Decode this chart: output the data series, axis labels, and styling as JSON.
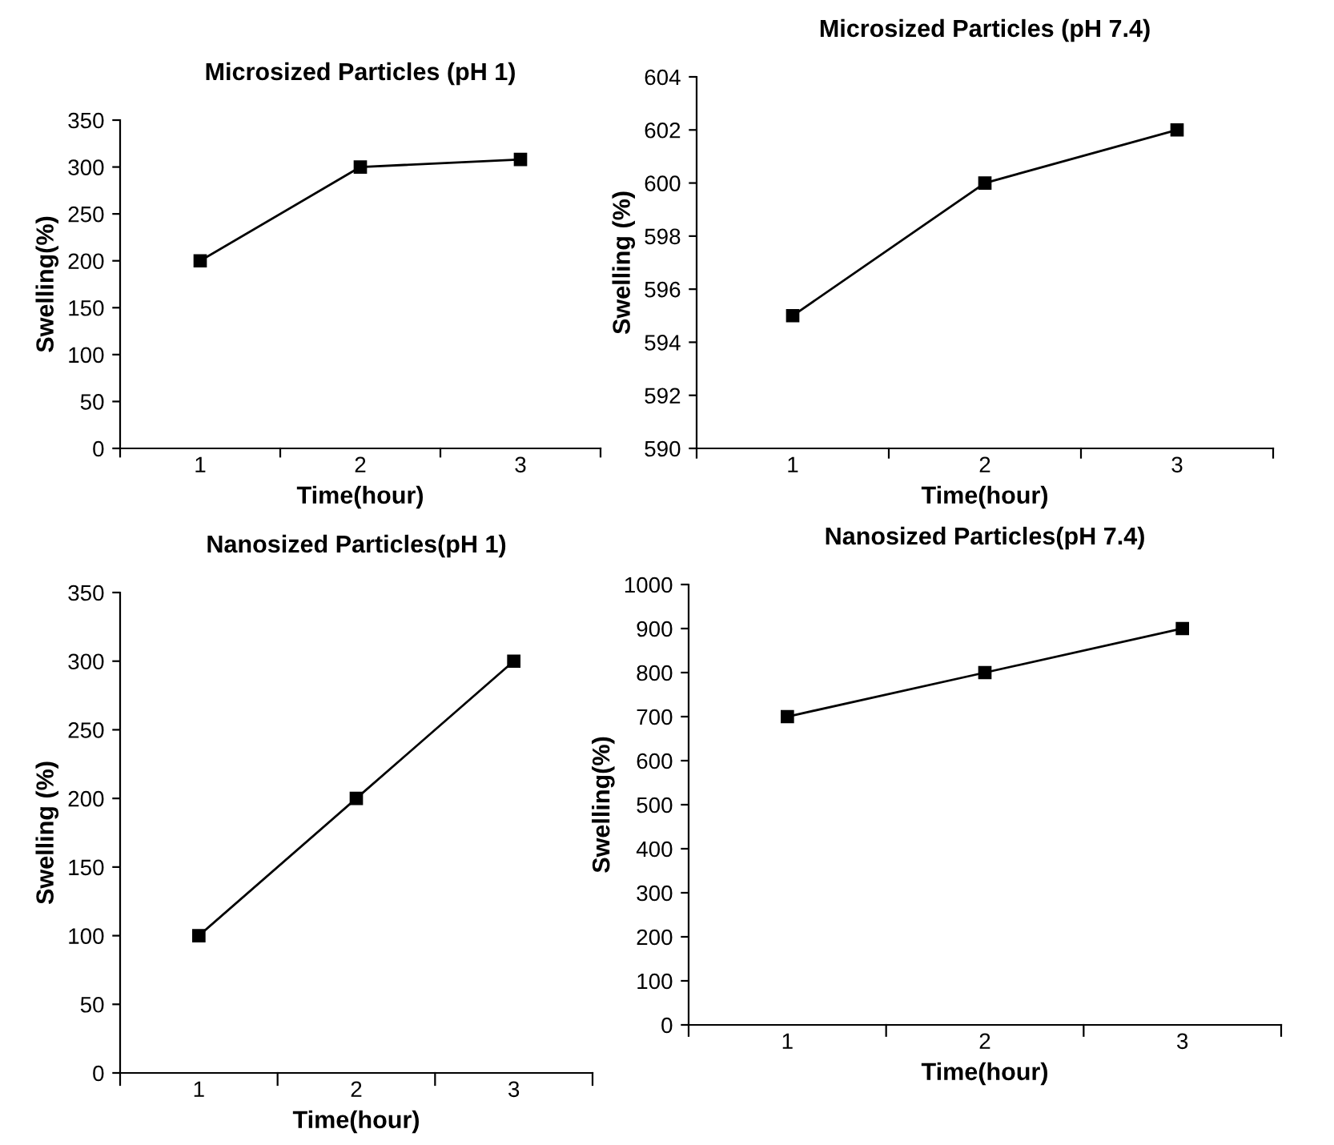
{
  "chart_data": [
    {
      "type": "line",
      "title": "Microsized Particles (pH 1)",
      "xlabel": "Time(hour)",
      "ylabel": "Swelling(%)",
      "categories": [
        "1",
        "2",
        "3"
      ],
      "series": [
        {
          "color": "#000000",
          "values": [
            200,
            300,
            308
          ]
        }
      ],
      "ylim": [
        0,
        350
      ],
      "yticks": [
        0,
        50,
        100,
        150,
        200,
        250,
        300,
        350
      ],
      "marker": "square",
      "line_style": "solid",
      "grid": false,
      "legend": false
    },
    {
      "type": "line",
      "title": "Microsized Particles (pH 7.4)",
      "xlabel": "Time(hour)",
      "ylabel": "Swelling (%)",
      "categories": [
        "1",
        "2",
        "3"
      ],
      "series": [
        {
          "color": "#000000",
          "values": [
            595,
            600,
            602
          ]
        }
      ],
      "ylim": [
        590,
        604
      ],
      "yticks": [
        590,
        592,
        594,
        596,
        598,
        600,
        602,
        604
      ],
      "marker": "square",
      "line_style": "solid",
      "grid": false,
      "legend": false
    },
    {
      "type": "line",
      "title": "Nanosized Particles(pH 1)",
      "xlabel": "Time(hour)",
      "ylabel": "Swelling (%)",
      "categories": [
        "1",
        "2",
        "3"
      ],
      "series": [
        {
          "color": "#000000",
          "values": [
            100,
            200,
            300
          ]
        }
      ],
      "ylim": [
        0,
        350
      ],
      "yticks": [
        0,
        50,
        100,
        150,
        200,
        250,
        300,
        350
      ],
      "marker": "square",
      "line_style": "solid",
      "grid": false,
      "legend": false
    },
    {
      "type": "line",
      "title": "Nanosized Particles(pH 7.4)",
      "xlabel": "Time(hour)",
      "ylabel": "Swelling(%)",
      "categories": [
        "1",
        "2",
        "3"
      ],
      "series": [
        {
          "color": "#000000",
          "values": [
            700,
            800,
            900
          ]
        }
      ],
      "ylim": [
        0,
        1000
      ],
      "yticks": [
        0,
        100,
        200,
        300,
        400,
        500,
        600,
        700,
        800,
        900,
        1000
      ],
      "marker": "square",
      "line_style": "solid",
      "grid": false,
      "legend": false
    }
  ]
}
